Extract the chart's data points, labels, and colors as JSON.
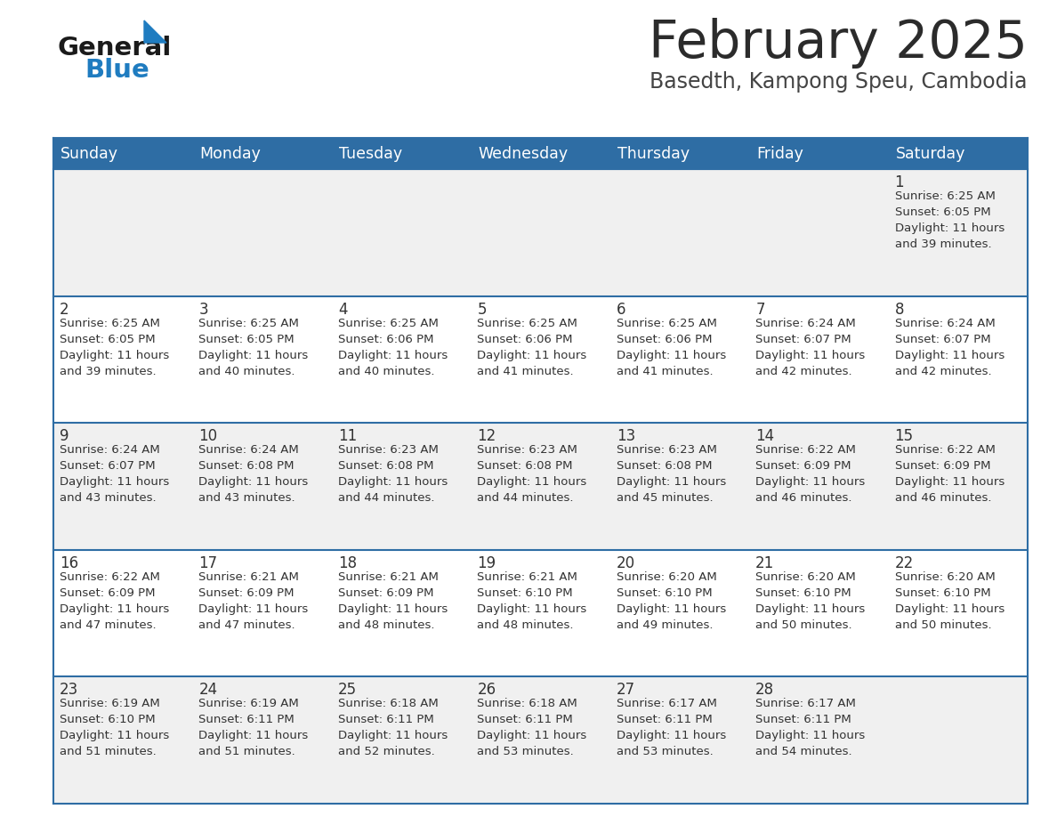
{
  "title": "February 2025",
  "subtitle": "Basedth, Kampong Speu, Cambodia",
  "header_bg_color": "#2E6DA4",
  "header_text_color": "#FFFFFF",
  "odd_row_bg": "#F0F0F0",
  "even_row_bg": "#FFFFFF",
  "border_color": "#2E6DA4",
  "day_headers": [
    "Sunday",
    "Monday",
    "Tuesday",
    "Wednesday",
    "Thursday",
    "Friday",
    "Saturday"
  ],
  "title_color": "#2B2B2B",
  "subtitle_color": "#444444",
  "text_color": "#333333",
  "day_num_color": "#333333",
  "logo_general_color": "#1A1A1A",
  "logo_blue_color": "#1F7CC0",
  "calendar_data": [
    [
      null,
      null,
      null,
      null,
      null,
      null,
      {
        "day": 1,
        "sunrise": "6:25 AM",
        "sunset": "6:05 PM",
        "daylight": "11 hours and 39 minutes."
      }
    ],
    [
      {
        "day": 2,
        "sunrise": "6:25 AM",
        "sunset": "6:05 PM",
        "daylight": "11 hours and 39 minutes."
      },
      {
        "day": 3,
        "sunrise": "6:25 AM",
        "sunset": "6:05 PM",
        "daylight": "11 hours and 40 minutes."
      },
      {
        "day": 4,
        "sunrise": "6:25 AM",
        "sunset": "6:06 PM",
        "daylight": "11 hours and 40 minutes."
      },
      {
        "day": 5,
        "sunrise": "6:25 AM",
        "sunset": "6:06 PM",
        "daylight": "11 hours and 41 minutes."
      },
      {
        "day": 6,
        "sunrise": "6:25 AM",
        "sunset": "6:06 PM",
        "daylight": "11 hours and 41 minutes."
      },
      {
        "day": 7,
        "sunrise": "6:24 AM",
        "sunset": "6:07 PM",
        "daylight": "11 hours and 42 minutes."
      },
      {
        "day": 8,
        "sunrise": "6:24 AM",
        "sunset": "6:07 PM",
        "daylight": "11 hours and 42 minutes."
      }
    ],
    [
      {
        "day": 9,
        "sunrise": "6:24 AM",
        "sunset": "6:07 PM",
        "daylight": "11 hours and 43 minutes."
      },
      {
        "day": 10,
        "sunrise": "6:24 AM",
        "sunset": "6:08 PM",
        "daylight": "11 hours and 43 minutes."
      },
      {
        "day": 11,
        "sunrise": "6:23 AM",
        "sunset": "6:08 PM",
        "daylight": "11 hours and 44 minutes."
      },
      {
        "day": 12,
        "sunrise": "6:23 AM",
        "sunset": "6:08 PM",
        "daylight": "11 hours and 44 minutes."
      },
      {
        "day": 13,
        "sunrise": "6:23 AM",
        "sunset": "6:08 PM",
        "daylight": "11 hours and 45 minutes."
      },
      {
        "day": 14,
        "sunrise": "6:22 AM",
        "sunset": "6:09 PM",
        "daylight": "11 hours and 46 minutes."
      },
      {
        "day": 15,
        "sunrise": "6:22 AM",
        "sunset": "6:09 PM",
        "daylight": "11 hours and 46 minutes."
      }
    ],
    [
      {
        "day": 16,
        "sunrise": "6:22 AM",
        "sunset": "6:09 PM",
        "daylight": "11 hours and 47 minutes."
      },
      {
        "day": 17,
        "sunrise": "6:21 AM",
        "sunset": "6:09 PM",
        "daylight": "11 hours and 47 minutes."
      },
      {
        "day": 18,
        "sunrise": "6:21 AM",
        "sunset": "6:09 PM",
        "daylight": "11 hours and 48 minutes."
      },
      {
        "day": 19,
        "sunrise": "6:21 AM",
        "sunset": "6:10 PM",
        "daylight": "11 hours and 48 minutes."
      },
      {
        "day": 20,
        "sunrise": "6:20 AM",
        "sunset": "6:10 PM",
        "daylight": "11 hours and 49 minutes."
      },
      {
        "day": 21,
        "sunrise": "6:20 AM",
        "sunset": "6:10 PM",
        "daylight": "11 hours and 50 minutes."
      },
      {
        "day": 22,
        "sunrise": "6:20 AM",
        "sunset": "6:10 PM",
        "daylight": "11 hours and 50 minutes."
      }
    ],
    [
      {
        "day": 23,
        "sunrise": "6:19 AM",
        "sunset": "6:10 PM",
        "daylight": "11 hours and 51 minutes."
      },
      {
        "day": 24,
        "sunrise": "6:19 AM",
        "sunset": "6:11 PM",
        "daylight": "11 hours and 51 minutes."
      },
      {
        "day": 25,
        "sunrise": "6:18 AM",
        "sunset": "6:11 PM",
        "daylight": "11 hours and 52 minutes."
      },
      {
        "day": 26,
        "sunrise": "6:18 AM",
        "sunset": "6:11 PM",
        "daylight": "11 hours and 53 minutes."
      },
      {
        "day": 27,
        "sunrise": "6:17 AM",
        "sunset": "6:11 PM",
        "daylight": "11 hours and 53 minutes."
      },
      {
        "day": 28,
        "sunrise": "6:17 AM",
        "sunset": "6:11 PM",
        "daylight": "11 hours and 54 minutes."
      },
      null
    ]
  ]
}
